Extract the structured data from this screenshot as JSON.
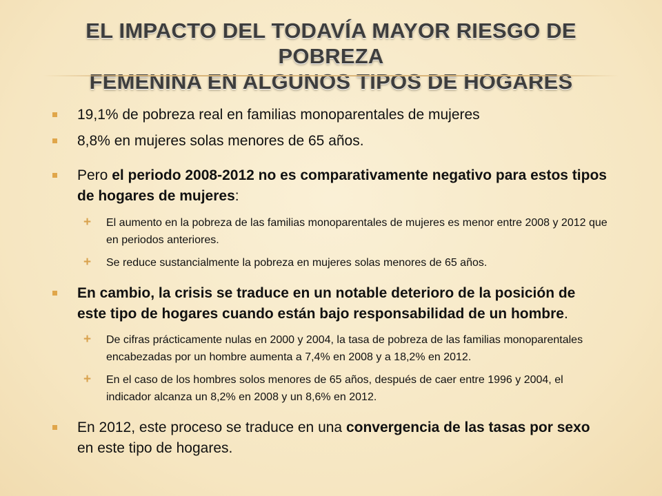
{
  "title": {
    "line1": "EL IMPACTO DEL TODAVÍA MAYOR RIESGO DE POBREZA",
    "line2": "FEMENINA EN ALGUNOS TIPOS DE HOGARES"
  },
  "bullets": {
    "b1": {
      "text": "19,1% de pobreza real en familias monoparentales de mujeres"
    },
    "b2": {
      "text": "8,8% en mujeres solas menores de 65 años."
    },
    "b3": {
      "pre": "Pero ",
      "bold": "el periodo 2008-2012 no es comparativamente negativo para estos tipos de hogares de mujeres",
      "post": ":",
      "sub1": "El aumento en la pobreza de las familias monoparentales de mujeres es menor entre 2008 y 2012 que en periodos anteriores.",
      "sub2": "Se reduce sustancialmente la pobreza en mujeres solas menores de 65 años."
    },
    "b4": {
      "bold": "En cambio, la crisis se traduce en un notable deterioro de la posición de este tipo de hogares cuando están bajo responsabilidad de un hombre",
      "post": ".",
      "sub1": "De cifras prácticamente nulas en 2000 y 2004, la tasa de pobreza de las familias monoparentales encabezadas por un hombre aumenta a 7,4% en 2008 y a 18,2% en 2012.",
      "sub2": "En el caso de los hombres solos menores de 65 años, después de caer entre 1996 y 2004, el indicador alcanza un 8,2% en 2008 y un 8,6% en 2012."
    },
    "b5": {
      "pre": "En 2012, este proceso se traduce en una ",
      "bold": "convergencia de las tasas por sexo",
      "post": " en este tipo de hogares."
    }
  },
  "colors": {
    "background": "#f8ebcc",
    "bullet_accent": "#e0a64a",
    "title_text": "#3d3d3d"
  },
  "icons": {
    "level1_bullet": "square-bullet-icon",
    "level2_bullet": "plus-bullet-icon"
  }
}
